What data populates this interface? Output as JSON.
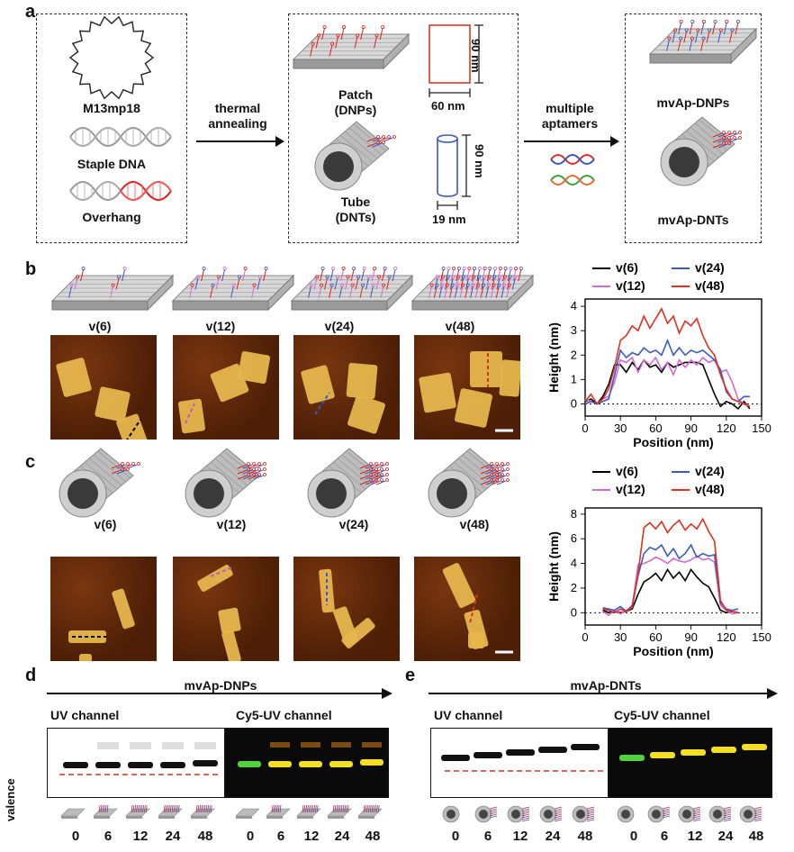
{
  "panels": {
    "a": "a",
    "b": "b",
    "c": "c",
    "d": "d",
    "e": "e"
  },
  "panel_a": {
    "m13": "M13mp18",
    "staple": "Staple DNA",
    "overhang": "Overhang",
    "arrow1": [
      "thermal",
      "annealing"
    ],
    "patch": [
      "Patch",
      "(DNPs)"
    ],
    "tube": [
      "Tube",
      "(DNTs)"
    ],
    "dims": {
      "patch_h": "90 nm",
      "patch_w": "60 nm",
      "tube_h": "90 nm",
      "tube_w": "19 nm"
    },
    "arrow2": [
      "multiple",
      "aptamers"
    ],
    "products": [
      "mvAp-DNPs",
      "mvAp-DNTs"
    ]
  },
  "valences": [
    "v(6)",
    "v(12)",
    "v(24)",
    "v(48)"
  ],
  "legend_colors": {
    "v(6)": "#000000",
    "v(12)": "#d46ad0",
    "v(24)": "#3b5bc0",
    "v(48)": "#e0301e"
  },
  "chart_data": [
    {
      "type": "line",
      "xlabel": "Position (nm)",
      "ylabel": "Height (nm)",
      "xlim": [
        0,
        150
      ],
      "ylim": [
        -0.5,
        4.3
      ],
      "xticks": [
        0,
        30,
        60,
        90,
        120,
        150
      ],
      "yticks": [
        0,
        1,
        2,
        3,
        4
      ],
      "legend": "top",
      "series": [
        {
          "name": "v(6)",
          "color": "#000000",
          "x": [
            0,
            5,
            10,
            15,
            20,
            25,
            30,
            35,
            40,
            45,
            50,
            55,
            60,
            65,
            70,
            75,
            80,
            85,
            90,
            95,
            100,
            105,
            110,
            115,
            120,
            125,
            130,
            135,
            140
          ],
          "values": [
            0.1,
            0.2,
            0.0,
            0.3,
            0.8,
            1.6,
            1.6,
            1.3,
            1.7,
            1.4,
            1.8,
            1.5,
            1.6,
            1.3,
            1.7,
            1.5,
            1.6,
            1.7,
            1.7,
            1.7,
            1.6,
            1.0,
            0.4,
            -0.1,
            0.1,
            0.0,
            -0.2,
            0.1,
            -0.2
          ]
        },
        {
          "name": "v(12)",
          "color": "#d46ad0",
          "x": [
            0,
            5,
            10,
            15,
            20,
            25,
            30,
            35,
            40,
            45,
            50,
            55,
            60,
            65,
            70,
            75,
            80,
            85,
            90,
            95,
            100,
            105,
            110,
            115,
            120,
            125,
            130,
            135,
            140
          ],
          "values": [
            0.2,
            0.1,
            0.0,
            0.2,
            0.3,
            0.9,
            1.8,
            1.7,
            1.9,
            1.3,
            1.8,
            1.6,
            1.9,
            1.4,
            1.7,
            1.2,
            1.8,
            1.5,
            1.8,
            1.6,
            1.9,
            1.7,
            1.8,
            1.3,
            1.4,
            0.9,
            0.2,
            0.0,
            -0.1
          ]
        },
        {
          "name": "v(24)",
          "color": "#3b5bc0",
          "x": [
            0,
            5,
            10,
            15,
            20,
            25,
            30,
            35,
            40,
            45,
            50,
            55,
            60,
            65,
            70,
            75,
            80,
            85,
            90,
            95,
            100,
            105,
            110,
            115,
            120,
            125,
            130,
            135,
            140
          ],
          "values": [
            0.0,
            0.1,
            0.0,
            0.1,
            0.2,
            1.2,
            2.2,
            1.9,
            2.1,
            2.0,
            2.3,
            2.1,
            2.2,
            2.0,
            2.6,
            2.0,
            2.3,
            2.0,
            2.2,
            2.1,
            2.2,
            2.0,
            1.8,
            1.4,
            0.5,
            0.2,
            0.1,
            0.3,
            0.3
          ]
        },
        {
          "name": "v(48)",
          "color": "#e0301e",
          "x": [
            0,
            5,
            10,
            15,
            20,
            25,
            30,
            35,
            40,
            45,
            50,
            55,
            60,
            65,
            70,
            75,
            80,
            85,
            90,
            95,
            100,
            105,
            110,
            115,
            120,
            125,
            130,
            135,
            140
          ],
          "values": [
            0.1,
            0.4,
            0.0,
            0.2,
            0.6,
            1.5,
            2.6,
            2.8,
            3.2,
            3.0,
            3.6,
            3.1,
            3.5,
            3.9,
            3.3,
            3.6,
            2.9,
            3.4,
            3.2,
            3.5,
            2.8,
            2.3,
            2.0,
            1.2,
            0.6,
            0.2,
            0.1,
            0.0,
            -0.1
          ]
        }
      ]
    },
    {
      "type": "line",
      "xlabel": "Position (nm)",
      "ylabel": "Height (nm)",
      "xlim": [
        0,
        150
      ],
      "ylim": [
        -1,
        8.5
      ],
      "xticks": [
        0,
        30,
        60,
        90,
        120,
        150
      ],
      "yticks": [
        0,
        2,
        4,
        6,
        8
      ],
      "legend": "top",
      "series": [
        {
          "name": "v(6)",
          "color": "#000000",
          "x": [
            15,
            20,
            25,
            30,
            35,
            40,
            45,
            50,
            55,
            60,
            65,
            70,
            75,
            80,
            85,
            90,
            95,
            100,
            105,
            110,
            115,
            120,
            125,
            130
          ],
          "values": [
            0.2,
            0.0,
            0.1,
            0.0,
            0.1,
            0.3,
            1.5,
            2.5,
            2.8,
            3.2,
            2.6,
            3.5,
            2.8,
            3.3,
            2.6,
            3.5,
            2.9,
            2.4,
            2.1,
            1.2,
            0.2,
            0.0,
            0.1,
            0.0
          ]
        },
        {
          "name": "v(12)",
          "color": "#d46ad0",
          "x": [
            15,
            20,
            25,
            30,
            35,
            40,
            45,
            50,
            55,
            60,
            65,
            70,
            75,
            80,
            85,
            90,
            95,
            100,
            105,
            110,
            115,
            120,
            125,
            130
          ],
          "values": [
            0.1,
            -0.2,
            0.2,
            -0.1,
            0.2,
            0.5,
            3.9,
            4.0,
            4.2,
            4.5,
            4.3,
            4.0,
            4.4,
            4.2,
            4.1,
            4.3,
            4.6,
            4.3,
            4.4,
            4.1,
            0.6,
            0.2,
            -0.1,
            0.0
          ]
        },
        {
          "name": "v(24)",
          "color": "#3b5bc0",
          "x": [
            15,
            20,
            25,
            30,
            35,
            40,
            45,
            50,
            55,
            60,
            65,
            70,
            75,
            80,
            85,
            90,
            95,
            100,
            105,
            110,
            115,
            120,
            125,
            130
          ],
          "values": [
            0.4,
            0.3,
            0.2,
            0.5,
            0.1,
            0.6,
            3.0,
            4.8,
            5.3,
            5.1,
            5.5,
            4.6,
            5.2,
            4.4,
            4.8,
            5.5,
            4.5,
            4.8,
            4.6,
            4.7,
            0.8,
            0.3,
            0.2,
            0.3
          ]
        },
        {
          "name": "v(48)",
          "color": "#e0301e",
          "x": [
            15,
            20,
            25,
            30,
            35,
            40,
            45,
            50,
            55,
            60,
            65,
            70,
            75,
            80,
            85,
            90,
            95,
            100,
            105,
            110,
            115,
            120,
            125,
            130
          ],
          "values": [
            0.3,
            0.2,
            0.0,
            0.3,
            0.1,
            0.4,
            3.2,
            6.9,
            7.3,
            6.8,
            7.4,
            6.5,
            7.1,
            7.5,
            6.7,
            7.2,
            6.8,
            7.6,
            6.6,
            5.8,
            1.0,
            0.2,
            0.1,
            0.0
          ]
        }
      ]
    }
  ],
  "panel_d": {
    "title": "mvAp-DNPs",
    "uv": "UV channel",
    "cy5": "Cy5-UV channel",
    "valence_label": "valence",
    "lanes": [
      "0",
      "6",
      "12",
      "24",
      "48",
      "0",
      "6",
      "12",
      "24",
      "48"
    ]
  },
  "panel_e": {
    "title": "mvAp-DNTs",
    "uv": "UV channel",
    "cy5": "Cy5-UV channel",
    "lanes": [
      "0",
      "6",
      "12",
      "24",
      "48",
      "0",
      "6",
      "12",
      "24",
      "48"
    ]
  }
}
